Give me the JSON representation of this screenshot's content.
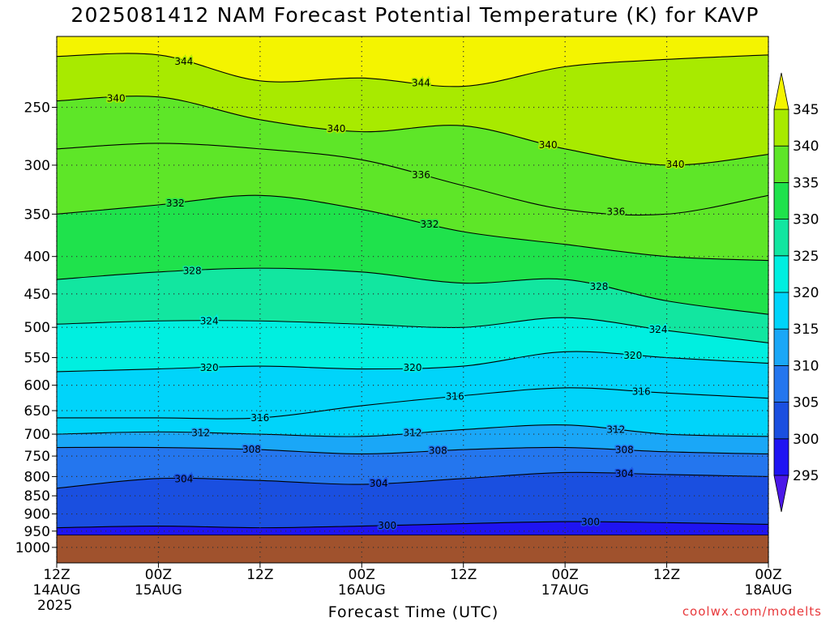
{
  "chart_data": {
    "type": "heatmap",
    "title": "2025081412 NAM Forecast Potential Temperature (K) for KAVP",
    "xlabel": "Forecast Time (UTC)",
    "ylabel": "",
    "x_ticks": [
      {
        "l1": "12Z",
        "l2": "14AUG",
        "l3": "2025",
        "hours": 0
      },
      {
        "l1": "00Z",
        "l2": "15AUG",
        "l3": "",
        "hours": 12
      },
      {
        "l1": "12Z",
        "l2": "",
        "l3": "",
        "hours": 24
      },
      {
        "l1": "00Z",
        "l2": "16AUG",
        "l3": "",
        "hours": 36
      },
      {
        "l1": "12Z",
        "l2": "",
        "l3": "",
        "hours": 48
      },
      {
        "l1": "00Z",
        "l2": "17AUG",
        "l3": "",
        "hours": 60
      },
      {
        "l1": "12Z",
        "l2": "",
        "l3": "",
        "hours": 72
      },
      {
        "l1": "00Z",
        "l2": "18AUG",
        "l3": "",
        "hours": 84
      }
    ],
    "xlim_hours": [
      0,
      84
    ],
    "y_ticks": [
      250,
      300,
      350,
      400,
      450,
      500,
      550,
      600,
      650,
      700,
      750,
      800,
      850,
      900,
      950,
      1000
    ],
    "ylim_hpa": [
      200,
      1050
    ],
    "y_scale": "log-pressure",
    "grid": true,
    "surface_pressure_hpa": 962,
    "colorbar": {
      "ticks": [
        295,
        300,
        305,
        310,
        315,
        320,
        325,
        330,
        335,
        340,
        345
      ],
      "bins": [
        {
          "from": 290,
          "to": 295,
          "color": "#4b18e8"
        },
        {
          "from": 295,
          "to": 300,
          "color": "#1f14f2"
        },
        {
          "from": 300,
          "to": 305,
          "color": "#1a4fe0"
        },
        {
          "from": 305,
          "to": 310,
          "color": "#2476ee"
        },
        {
          "from": 310,
          "to": 315,
          "color": "#1aa7f7"
        },
        {
          "from": 315,
          "to": 320,
          "color": "#00d4fa"
        },
        {
          "from": 320,
          "to": 325,
          "color": "#00efe0"
        },
        {
          "from": 325,
          "to": 330,
          "color": "#12e6a0"
        },
        {
          "from": 330,
          "to": 335,
          "color": "#1fe24c"
        },
        {
          "from": 335,
          "to": 340,
          "color": "#5ee628"
        },
        {
          "from": 340,
          "to": 345,
          "color": "#a8ea00"
        },
        {
          "from": 345,
          "to": 350,
          "color": "#f4f400"
        }
      ]
    },
    "contours": [
      {
        "value": 344,
        "pressure_hpa": [
          213,
          212,
          230,
          228,
          234,
          220,
          215,
          212
        ],
        "labels": [
          {
            "hour": 15,
            "text": "344"
          },
          {
            "hour": 43,
            "text": "344"
          }
        ]
      },
      {
        "value": 340,
        "pressure_hpa": [
          245,
          242,
          260,
          270,
          265,
          285,
          300,
          290
        ],
        "labels": [
          {
            "hour": 7,
            "text": "340"
          },
          {
            "hour": 33,
            "text": "340"
          },
          {
            "hour": 58,
            "text": "340"
          },
          {
            "hour": 73,
            "text": "340"
          }
        ]
      },
      {
        "value": 336,
        "pressure_hpa": [
          285,
          280,
          285,
          295,
          320,
          345,
          350,
          330
        ],
        "labels": [
          {
            "hour": 43,
            "text": "336"
          },
          {
            "hour": 66,
            "text": "336"
          }
        ]
      },
      {
        "value": 332,
        "pressure_hpa": [
          350,
          340,
          330,
          345,
          370,
          385,
          400,
          405
        ],
        "labels": [
          {
            "hour": 14,
            "text": "332"
          },
          {
            "hour": 44,
            "text": "332"
          }
        ]
      },
      {
        "value": 328,
        "pressure_hpa": [
          430,
          420,
          415,
          420,
          435,
          430,
          460,
          480
        ],
        "labels": [
          {
            "hour": 16,
            "text": "328"
          },
          {
            "hour": 64,
            "text": "328"
          }
        ]
      },
      {
        "value": 324,
        "pressure_hpa": [
          495,
          490,
          490,
          495,
          500,
          485,
          505,
          525
        ],
        "labels": [
          {
            "hour": 18,
            "text": "324"
          },
          {
            "hour": 71,
            "text": "324"
          }
        ]
      },
      {
        "value": 320,
        "pressure_hpa": [
          575,
          570,
          565,
          570,
          565,
          540,
          550,
          560
        ],
        "labels": [
          {
            "hour": 18,
            "text": "320"
          },
          {
            "hour": 42,
            "text": "320"
          },
          {
            "hour": 68,
            "text": "320"
          }
        ]
      },
      {
        "value": 316,
        "pressure_hpa": [
          665,
          665,
          665,
          640,
          620,
          605,
          615,
          625
        ],
        "labels": [
          {
            "hour": 24,
            "text": "316"
          },
          {
            "hour": 47,
            "text": "316"
          },
          {
            "hour": 69,
            "text": "316"
          }
        ]
      },
      {
        "value": 312,
        "pressure_hpa": [
          700,
          695,
          700,
          705,
          690,
          680,
          700,
          705
        ],
        "labels": [
          {
            "hour": 17,
            "text": "312"
          },
          {
            "hour": 42,
            "text": "312"
          },
          {
            "hour": 66,
            "text": "312"
          }
        ]
      },
      {
        "value": 308,
        "pressure_hpa": [
          730,
          730,
          735,
          745,
          735,
          730,
          740,
          745
        ],
        "labels": [
          {
            "hour": 23,
            "text": "308"
          },
          {
            "hour": 45,
            "text": "308"
          },
          {
            "hour": 67,
            "text": "308"
          }
        ]
      },
      {
        "value": 304,
        "pressure_hpa": [
          830,
          805,
          810,
          820,
          805,
          790,
          795,
          800
        ],
        "labels": [
          {
            "hour": 15,
            "text": "304"
          },
          {
            "hour": 38,
            "text": "304"
          },
          {
            "hour": 67,
            "text": "304"
          }
        ]
      },
      {
        "value": 300,
        "pressure_hpa": [
          940,
          935,
          940,
          935,
          928,
          922,
          925,
          930
        ],
        "labels": [
          {
            "hour": 39,
            "text": "300"
          },
          {
            "hour": 63,
            "text": "300"
          }
        ]
      }
    ]
  },
  "credit": "coolwx.com/modelts"
}
